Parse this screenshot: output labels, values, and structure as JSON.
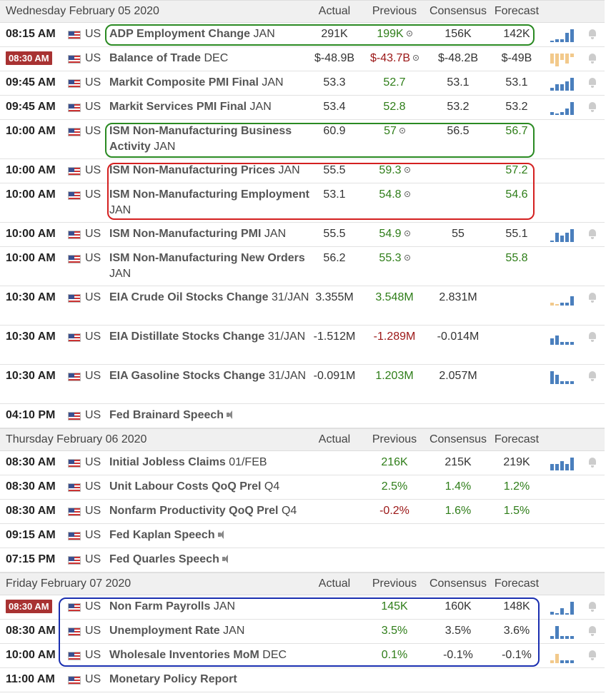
{
  "columns": {
    "actual": "Actual",
    "previous": "Previous",
    "consensus": "Consensus",
    "forecast": "Forecast"
  },
  "days": [
    {
      "date": "Wednesday February 05 2020",
      "rows": [
        {
          "time": "08:15 AM",
          "country": "US",
          "event": "ADP Employment Change",
          "period": "JAN",
          "actual": "291K",
          "previous": "199K",
          "prev_color": "green",
          "prev_rev": true,
          "consensus": "156K",
          "forecast": "142K",
          "spark": [
            0,
            1,
            1,
            3,
            4
          ],
          "spark_color": "blue",
          "bell": true
        },
        {
          "time": "08:30 AM",
          "time_hl": true,
          "country": "US",
          "event": "Balance of Trade",
          "period": "DEC",
          "actual": "$-48.9B",
          "previous": "$-43.7B",
          "prev_color": "red",
          "prev_rev": true,
          "consensus": "$-48.2B",
          "forecast": "$-49B",
          "spark": [
            3,
            4,
            2,
            3,
            1
          ],
          "spark_color": "tan",
          "bell": true
        },
        {
          "time": "09:45 AM",
          "country": "US",
          "event": "Markit Composite PMI Final",
          "period": "JAN",
          "actual": "53.3",
          "previous": "52.7",
          "prev_color": "green",
          "consensus": "53.1",
          "forecast": "53.1",
          "spark": [
            1,
            2,
            2,
            3,
            4
          ],
          "spark_color": "blue",
          "bell": true
        },
        {
          "time": "09:45 AM",
          "country": "US",
          "event": "Markit Services PMI Final",
          "period": "JAN",
          "actual": "53.4",
          "previous": "52.8",
          "prev_color": "green",
          "consensus": "53.2",
          "forecast": "53.2",
          "spark": [
            1,
            0,
            1,
            2,
            4
          ],
          "spark_color": "blue",
          "bell": true
        },
        {
          "time": "10:00 AM",
          "country": "US",
          "event": "ISM Non-Manufacturing Business Activity",
          "period": "JAN",
          "actual": "60.9",
          "previous": "57",
          "prev_color": "green",
          "prev_rev": true,
          "consensus": "56.5",
          "forecast": "56.7",
          "forecast_color": "green",
          "tall": true
        },
        {
          "time": "10:00 AM",
          "country": "US",
          "event": "ISM Non-Manufacturing Prices",
          "period": "JAN",
          "actual": "55.5",
          "previous": "59.3",
          "prev_color": "green",
          "prev_rev": true,
          "consensus": "",
          "forecast": "57.2",
          "forecast_color": "green"
        },
        {
          "time": "10:00 AM",
          "country": "US",
          "event": "ISM Non-Manufacturing Employment",
          "period": "JAN",
          "actual": "53.1",
          "previous": "54.8",
          "prev_color": "green",
          "prev_rev": true,
          "consensus": "",
          "forecast": "54.6",
          "forecast_color": "green",
          "tall": true
        },
        {
          "time": "10:00 AM",
          "country": "US",
          "event": "ISM Non-Manufacturing PMI",
          "period": "JAN",
          "actual": "55.5",
          "previous": "54.9",
          "prev_color": "green",
          "prev_rev": true,
          "consensus": "55",
          "forecast": "55.1",
          "spark": [
            0,
            3,
            2,
            3,
            4
          ],
          "spark_color": "blue",
          "bell": true
        },
        {
          "time": "10:00 AM",
          "country": "US",
          "event": "ISM Non-Manufacturing New Orders",
          "period": "JAN",
          "actual": "56.2",
          "previous": "55.3",
          "prev_color": "green",
          "prev_rev": true,
          "consensus": "",
          "forecast": "55.8",
          "forecast_color": "green",
          "tall": true
        },
        {
          "time": "10:30 AM",
          "country": "US",
          "event": "EIA Crude Oil Stocks Change",
          "period": "31/JAN",
          "actual": "3.355M",
          "previous": "3.548M",
          "prev_color": "green",
          "consensus": "2.831M",
          "forecast": "",
          "spark": [
            1,
            0,
            1,
            1,
            3
          ],
          "spark_color": "mixed",
          "bell": true,
          "tall": true
        },
        {
          "time": "10:30 AM",
          "country": "US",
          "event": "EIA Distillate Stocks Change",
          "period": "31/JAN",
          "actual": "-1.512M",
          "previous": "-1.289M",
          "prev_color": "red",
          "consensus": "-0.014M",
          "forecast": "",
          "spark": [
            2,
            3,
            1,
            1,
            1
          ],
          "spark_color": "blue",
          "bell": true,
          "tall": true
        },
        {
          "time": "10:30 AM",
          "country": "US",
          "event": "EIA Gasoline Stocks Change",
          "period": "31/JAN",
          "actual": "-0.091M",
          "previous": "1.203M",
          "prev_color": "green",
          "consensus": "2.057M",
          "forecast": "",
          "spark": [
            4,
            3,
            1,
            1,
            1
          ],
          "spark_color": "blue",
          "bell": true,
          "tall": true
        },
        {
          "time": "04:10 PM",
          "country": "US",
          "event": "Fed Brainard Speech",
          "period": "",
          "speaker": true,
          "actual": "",
          "previous": "",
          "consensus": "",
          "forecast": ""
        }
      ]
    },
    {
      "date": "Thursday February 06 2020",
      "rows": [
        {
          "time": "08:30 AM",
          "country": "US",
          "event": "Initial Jobless Claims",
          "period": "01/FEB",
          "actual": "",
          "previous": "216K",
          "prev_color": "green",
          "consensus": "215K",
          "forecast": "219K",
          "spark": [
            2,
            2,
            3,
            2,
            4
          ],
          "spark_color": "blue",
          "bell": true
        },
        {
          "time": "08:30 AM",
          "country": "US",
          "event": "Unit Labour Costs QoQ Prel",
          "period": "Q4",
          "actual": "",
          "previous": "2.5%",
          "prev_color": "green",
          "consensus": "1.4%",
          "cons_color": "green",
          "forecast": "1.2%",
          "forecast_color": "green"
        },
        {
          "time": "08:30 AM",
          "country": "US",
          "event": "Nonfarm Productivity QoQ Prel",
          "period": "Q4",
          "actual": "",
          "previous": "-0.2%",
          "prev_color": "red",
          "consensus": "1.6%",
          "cons_color": "green",
          "forecast": "1.5%",
          "forecast_color": "green"
        },
        {
          "time": "09:15 AM",
          "country": "US",
          "event": "Fed Kaplan Speech",
          "period": "",
          "speaker": true,
          "actual": "",
          "previous": "",
          "consensus": "",
          "forecast": ""
        },
        {
          "time": "07:15 PM",
          "country": "US",
          "event": "Fed Quarles Speech",
          "period": "",
          "speaker": true,
          "actual": "",
          "previous": "",
          "consensus": "",
          "forecast": ""
        }
      ]
    },
    {
      "date": "Friday February 07 2020",
      "rows": [
        {
          "time": "08:30 AM",
          "time_hl": true,
          "country": "US",
          "event": "Non Farm Payrolls",
          "period": "JAN",
          "actual": "",
          "previous": "145K",
          "prev_color": "green",
          "consensus": "160K",
          "forecast": "148K",
          "spark": [
            1,
            0,
            2,
            0,
            4
          ],
          "spark_color": "blue",
          "bell": true
        },
        {
          "time": "08:30 AM",
          "country": "US",
          "event": "Unemployment Rate",
          "period": "JAN",
          "actual": "",
          "previous": "3.5%",
          "prev_color": "green",
          "consensus": "3.5%",
          "forecast": "3.6%",
          "spark": [
            1,
            4,
            1,
            1,
            1
          ],
          "spark_color": "blue",
          "bell": true
        },
        {
          "time": "10:00 AM",
          "country": "US",
          "event": "Wholesale Inventories MoM",
          "period": "DEC",
          "actual": "",
          "previous": "0.1%",
          "prev_color": "green",
          "consensus": "-0.1%",
          "forecast": "-0.1%",
          "spark": [
            1,
            3,
            1,
            1,
            1
          ],
          "spark_color": "mixed",
          "bell": true
        },
        {
          "time": "11:00 AM",
          "country": "US",
          "event": "Monetary Policy Report",
          "period": "",
          "actual": "",
          "previous": "",
          "consensus": "",
          "forecast": ""
        }
      ]
    }
  ],
  "colors": {
    "green": "#2e7d18",
    "red": "#9b1616",
    "green_box": "#2a8a22",
    "red_box": "#d42020",
    "blue_box": "#1a2fb0"
  }
}
